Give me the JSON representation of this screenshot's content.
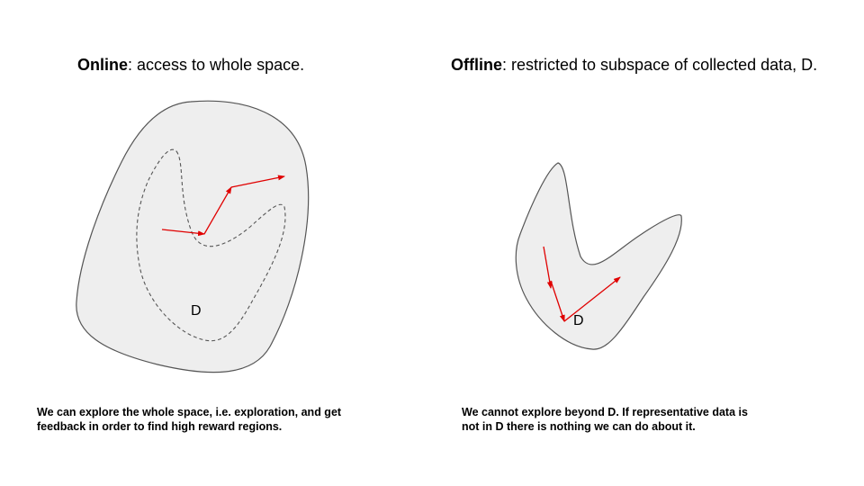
{
  "online": {
    "title_bold": "Online",
    "title_rest": ": access to whole space.",
    "region_label": "D",
    "caption_line1": "We can explore the whole space, i.e. exploration, and get",
    "caption_line2": "feedback in order to find high reward regions."
  },
  "offline": {
    "title_bold": "Offline",
    "title_rest": ": restricted to subspace of collected data, D.",
    "region_label": "D",
    "caption_line1": "We cannot explore beyond D. If representative data is",
    "caption_line2": "not in D there is nothing we can do about it."
  },
  "colors": {
    "region_fill": "#eeeeee",
    "region_stroke": "#555555",
    "arrow": "#e00000"
  }
}
